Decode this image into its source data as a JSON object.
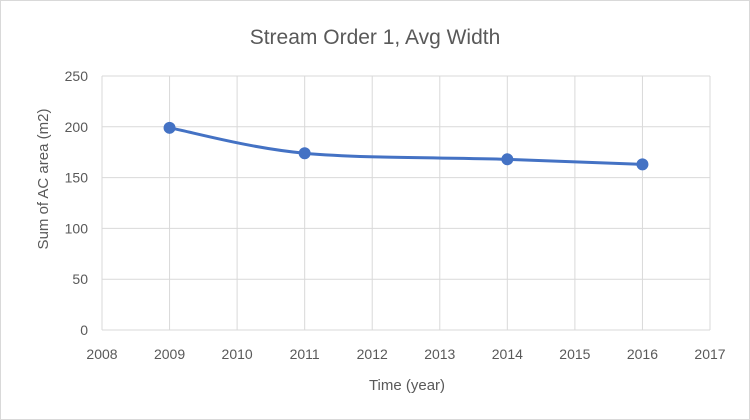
{
  "chart_data": {
    "type": "scatter",
    "title": "Stream Order 1, Avg Width",
    "xlabel": "Time (year)",
    "ylabel": "Sum of AC area (m2)",
    "xlim": [
      2008,
      2017
    ],
    "ylim": [
      0,
      250
    ],
    "x_ticks": [
      2008,
      2009,
      2010,
      2011,
      2012,
      2013,
      2014,
      2015,
      2016,
      2017
    ],
    "y_ticks": [
      0,
      50,
      100,
      150,
      200,
      250
    ],
    "grid": true,
    "smoothed_line": true,
    "series": [
      {
        "x": [
          2009,
          2011,
          2014,
          2016
        ],
        "y": [
          199,
          174,
          168,
          163
        ],
        "color": "#4472c4"
      }
    ]
  }
}
